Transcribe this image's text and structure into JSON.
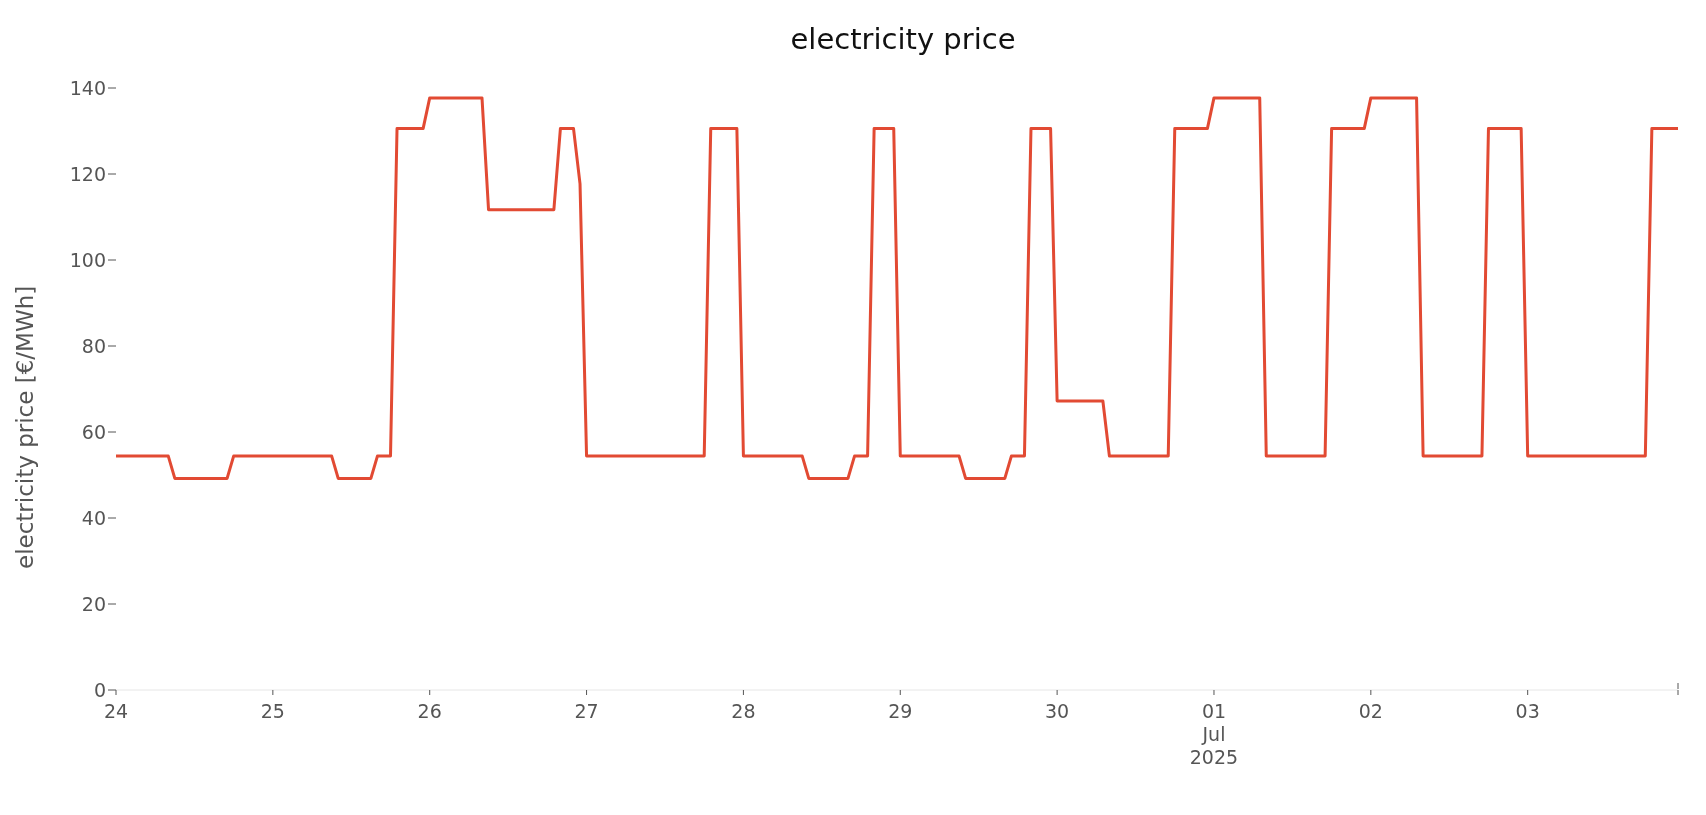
{
  "chart_data": {
    "type": "line",
    "title": "electricity price",
    "ylabel": "electricity price [€/MWh]",
    "x": [
      "2025-06-24T00:00",
      "2025-06-24T08:00",
      "2025-06-24T09:00",
      "2025-06-24T17:00",
      "2025-06-24T18:00",
      "2025-06-25T09:00",
      "2025-06-25T10:00",
      "2025-06-25T15:00",
      "2025-06-25T16:00",
      "2025-06-25T18:00",
      "2025-06-25T19:00",
      "2025-06-25T23:00",
      "2025-06-26T00:00",
      "2025-06-26T08:00",
      "2025-06-26T09:00",
      "2025-06-26T19:00",
      "2025-06-26T20:00",
      "2025-06-26T22:00",
      "2025-06-26T23:00",
      "2025-06-27T00:00",
      "2025-06-27T18:00",
      "2025-06-27T19:00",
      "2025-06-27T23:00",
      "2025-06-28T00:00",
      "2025-06-28T09:00",
      "2025-06-28T10:00",
      "2025-06-28T16:00",
      "2025-06-28T17:00",
      "2025-06-28T19:00",
      "2025-06-28T20:00",
      "2025-06-28T23:00",
      "2025-06-29T00:00",
      "2025-06-29T09:00",
      "2025-06-29T10:00",
      "2025-06-29T16:00",
      "2025-06-29T17:00",
      "2025-06-29T19:00",
      "2025-06-29T20:00",
      "2025-06-29T23:00",
      "2025-06-30T00:00",
      "2025-06-30T07:00",
      "2025-06-30T08:00",
      "2025-06-30T17:00",
      "2025-06-30T18:00",
      "2025-06-30T23:00",
      "2025-07-01T00:00",
      "2025-07-01T07:00",
      "2025-07-01T08:00",
      "2025-07-01T17:00",
      "2025-07-01T18:00",
      "2025-07-01T23:00",
      "2025-07-02T00:00",
      "2025-07-02T07:00",
      "2025-07-02T08:00",
      "2025-07-02T17:00",
      "2025-07-02T18:00",
      "2025-07-02T23:00",
      "2025-07-03T00:00",
      "2025-07-03T18:00",
      "2025-07-03T19:00",
      "2025-07-03T23:00"
    ],
    "series": [
      {
        "color": "#e24a33",
        "values": [
          54.4,
          54.4,
          49.2,
          49.2,
          54.4,
          54.4,
          49.2,
          49.2,
          54.4,
          54.4,
          130.6,
          130.6,
          137.7,
          137.7,
          111.7,
          111.7,
          130.6,
          130.6,
          117.7,
          54.4,
          54.4,
          130.6,
          130.6,
          54.4,
          54.4,
          49.2,
          49.2,
          54.4,
          54.4,
          130.6,
          130.6,
          54.4,
          54.4,
          49.2,
          49.2,
          54.4,
          54.4,
          130.6,
          130.6,
          67.2,
          67.2,
          54.4,
          54.4,
          130.6,
          130.6,
          137.7,
          137.7,
          54.4,
          54.4,
          130.6,
          130.6,
          137.7,
          137.7,
          54.4,
          54.4,
          130.6,
          130.6,
          54.4,
          54.4,
          130.6,
          130.6
        ]
      }
    ],
    "xlim": [
      "2025-06-24T00:00",
      "2025-07-03T23:00"
    ],
    "xticks": [
      {
        "value": "2025-06-24",
        "label": "24"
      },
      {
        "value": "2025-06-25",
        "label": "25"
      },
      {
        "value": "2025-06-26",
        "label": "26"
      },
      {
        "value": "2025-06-27",
        "label": "27"
      },
      {
        "value": "2025-06-28",
        "label": "28"
      },
      {
        "value": "2025-06-29",
        "label": "29"
      },
      {
        "value": "2025-06-30",
        "label": "30"
      },
      {
        "value": "2025-07-01",
        "label": "01\nJul\n2025"
      },
      {
        "value": "2025-07-02",
        "label": "02"
      },
      {
        "value": "2025-07-03",
        "label": "03"
      },
      {
        "value": "2025-07-03T23:00",
        "label": null
      }
    ],
    "ylim": [
      0,
      140
    ],
    "yticks": [
      0,
      20,
      40,
      60,
      80,
      100,
      120,
      140
    ],
    "grid": false,
    "legend": false,
    "marker": "none",
    "line_style": "solid"
  }
}
